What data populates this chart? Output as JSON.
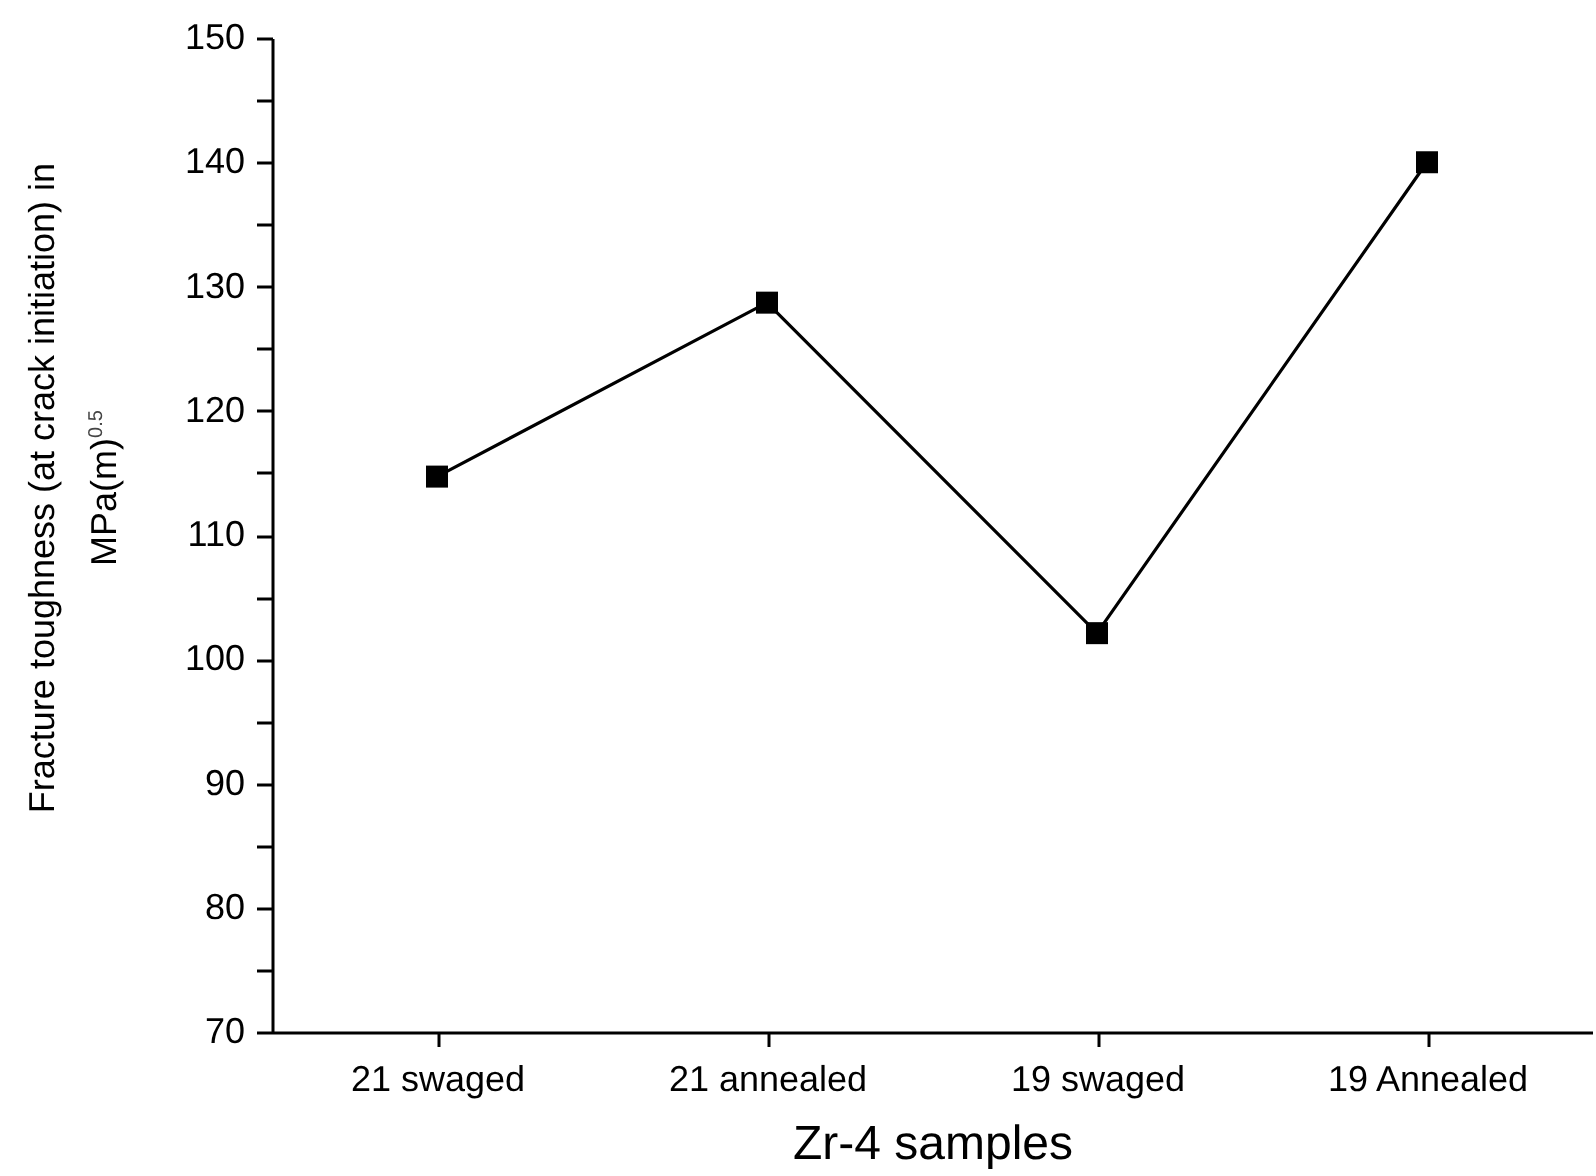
{
  "chart_data": {
    "type": "line",
    "xlabel": "Zr-4 samples",
    "ylabel": "Fracture toughness (at crack initiation) in MPa(m)$^{0.5}$",
    "categories": [
      "21 swaged",
      "21 annealed",
      "19 swaged",
      "19 Annealed"
    ],
    "values": [
      114.7,
      128.7,
      102.1,
      140
    ],
    "color": "#000000",
    "marker": "square",
    "line_style": "solid",
    "ylim": [
      70,
      150
    ],
    "yticks": [
      70,
      {
        "value": 75,
        "label": null
      },
      80,
      {
        "value": 85,
        "label": null
      },
      90,
      {
        "value": 95,
        "label": null
      },
      100,
      {
        "value": 105,
        "label": null
      },
      110,
      {
        "value": 115,
        "label": null
      },
      120,
      {
        "value": 125,
        "label": null
      },
      130,
      {
        "value": 135,
        "label": null
      },
      140,
      {
        "value": 145,
        "label": null
      },
      150
    ]
  }
}
